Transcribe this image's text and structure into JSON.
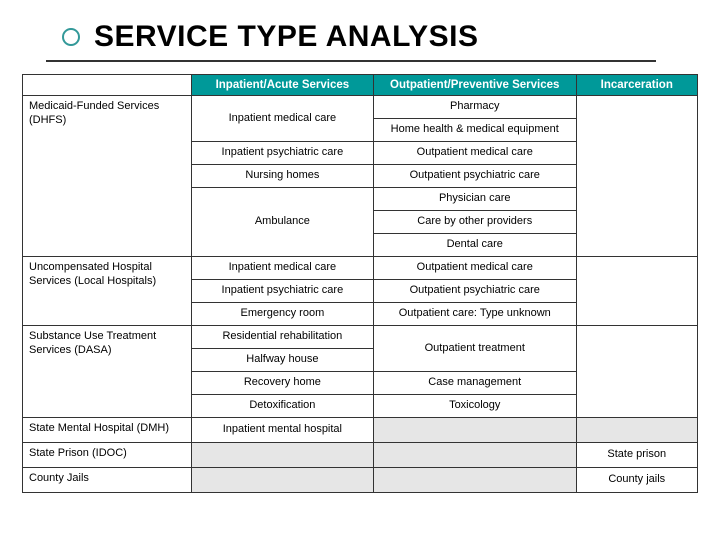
{
  "title": "SERVICE TYPE ANALYSIS",
  "colors": {
    "header_bg": "#009999",
    "header_text": "#ffffff",
    "border": "#333333",
    "shaded": "#e6e6e6",
    "bullet_ring": "#339999",
    "underline": "#333333"
  },
  "columns": [
    "",
    "Inpatient/Acute Services",
    "Outpatient/Preventive Services",
    "Incarceration"
  ],
  "groups": [
    {
      "label": "Medicaid-Funded Services (DHFS)",
      "rows": [
        {
          "inpatient": "Inpatient medical care",
          "outpatient_top": "Pharmacy",
          "outpatient_bottom": "Home health & medical equipment",
          "incarc": ""
        },
        {
          "inpatient": "Inpatient psychiatric care",
          "outpatient": "Outpatient medical care",
          "incarc": ""
        },
        {
          "inpatient": "Nursing homes",
          "outpatient": "Outpatient psychiatric care",
          "incarc": ""
        },
        {
          "inpatient_rowspan": 3,
          "inpatient": "Ambulance",
          "outpatient": "Physician care",
          "incarc": ""
        },
        {
          "outpatient": "Care by other providers",
          "incarc": ""
        },
        {
          "outpatient": "Dental care",
          "incarc": ""
        }
      ]
    },
    {
      "label": "Uncompensated Hospital Services (Local Hospitals)",
      "rows": [
        {
          "inpatient": "Inpatient medical care",
          "outpatient": "Outpatient medical care",
          "incarc": ""
        },
        {
          "inpatient": "Inpatient psychiatric care",
          "outpatient": "Outpatient psychiatric care",
          "incarc": ""
        },
        {
          "inpatient": "Emergency room",
          "outpatient": "Outpatient care: Type unknown",
          "incarc": ""
        }
      ]
    },
    {
      "label": "Substance Use Treatment Services (DASA)",
      "rows": [
        {
          "inpatient": "Residential rehabilitation",
          "outpatient_rowspan": 2,
          "outpatient": "Outpatient treatment",
          "incarc": ""
        },
        {
          "inpatient": "Halfway house",
          "incarc": ""
        },
        {
          "inpatient": "Recovery home",
          "outpatient": "Case management",
          "incarc": ""
        },
        {
          "inpatient": "Detoxification",
          "outpatient": "Toxicology",
          "incarc": ""
        }
      ]
    },
    {
      "label": "State Mental Hospital (DMH)",
      "rows": [
        {
          "inpatient": "Inpatient mental hospital",
          "outpatient_shaded": true,
          "incarc_shaded": true
        }
      ]
    },
    {
      "label": "State Prison (IDOC)",
      "rows": [
        {
          "inpatient_shaded": true,
          "outpatient_shaded": true,
          "incarc": "State prison"
        }
      ]
    },
    {
      "label": "County Jails",
      "rows": [
        {
          "inpatient_shaded": true,
          "outpatient_shaded": true,
          "incarc": "County jails"
        }
      ]
    }
  ]
}
